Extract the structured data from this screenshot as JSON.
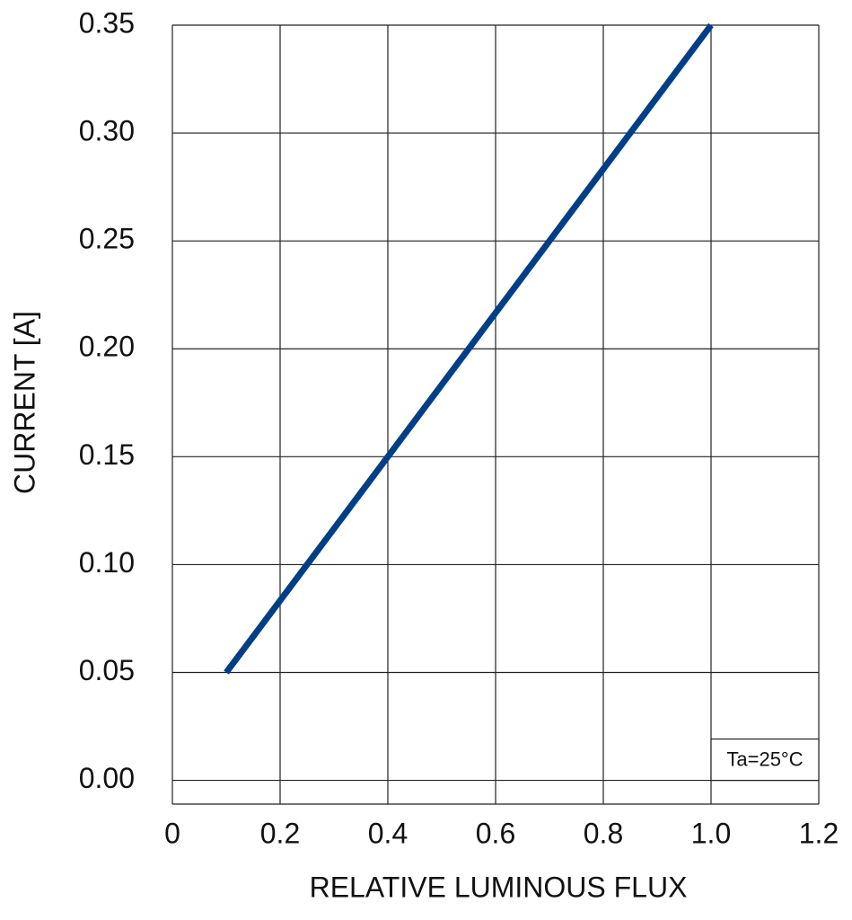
{
  "chart_data": {
    "type": "line",
    "x_label": "RELATIVE LUMINOUS FLUX",
    "y_label": "CURRENT [A]",
    "annotation": "Ta=25°C",
    "x": [
      0.1,
      1.0
    ],
    "series": [
      {
        "color": "#003f87",
        "values": [
          0.05,
          0.35
        ]
      }
    ],
    "xlim": [
      0,
      1.2
    ],
    "xticks": [
      0,
      0.2,
      0.4,
      0.6,
      0.8,
      {
        "value": 1,
        "label": "1.0"
      },
      1.2
    ],
    "ylim": [
      -0.011,
      0.35
    ],
    "yticks": [
      {
        "value": 0,
        "label": "0.00"
      },
      0.05,
      {
        "value": 0.1,
        "label": "0.10"
      },
      0.15,
      {
        "value": 0.2,
        "label": "0.20"
      },
      0.25,
      {
        "value": 0.3,
        "label": "0.30"
      },
      0.35
    ],
    "grid": true
  }
}
